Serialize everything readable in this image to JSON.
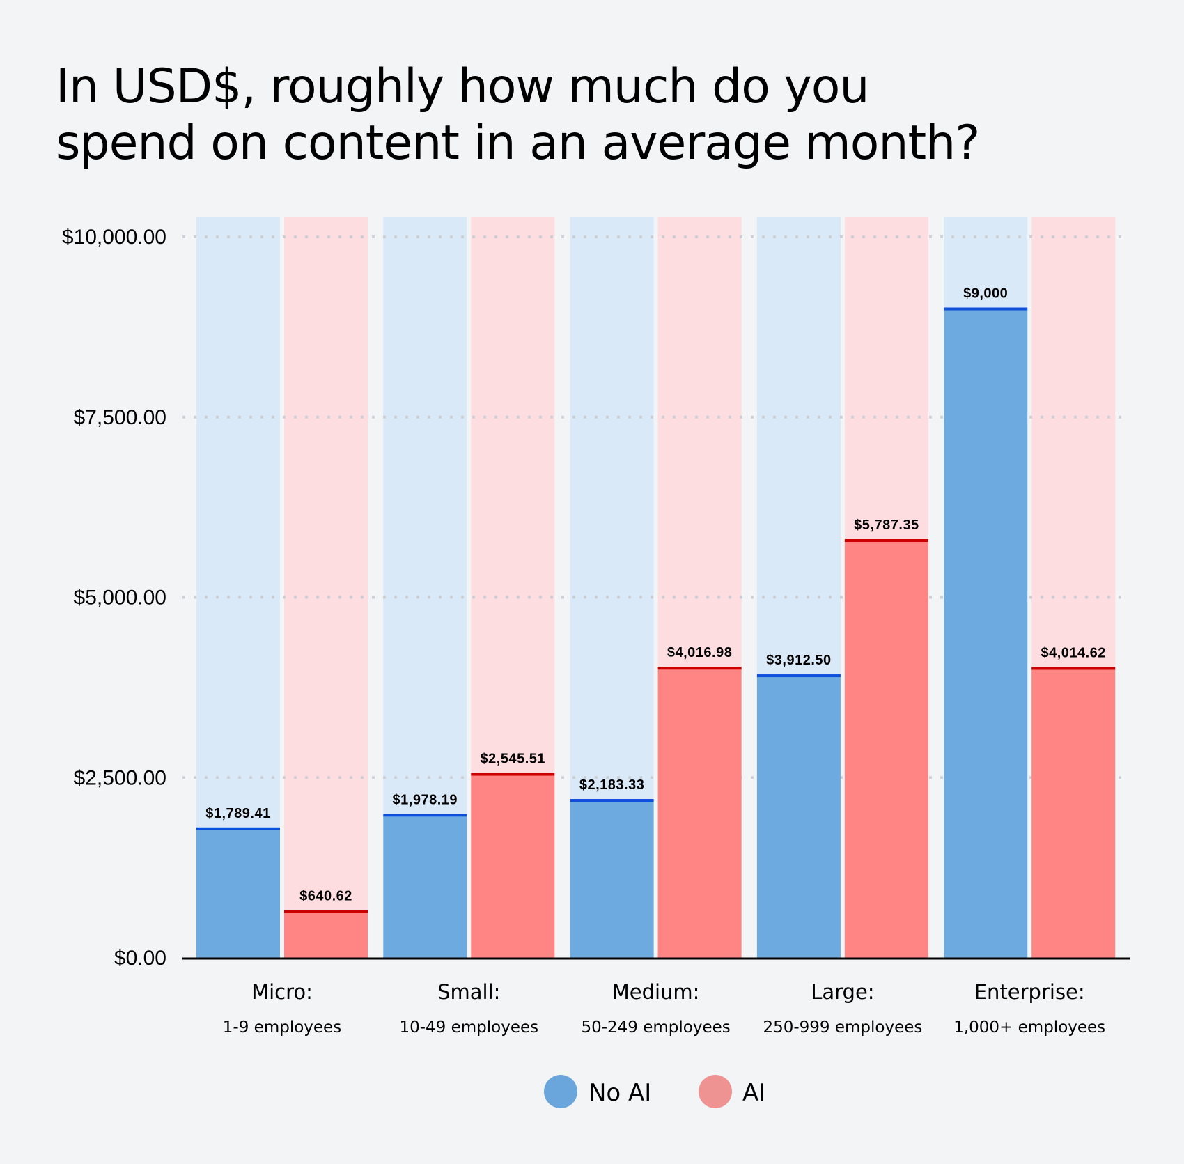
{
  "chart_data": {
    "type": "bar",
    "title": "In USD$, roughly how much do you spend on content in an average month?",
    "title_lines": [
      "In USD$, roughly how much do you",
      "spend on content in an average month?"
    ],
    "xlabel": "",
    "ylabel": "",
    "ylim": [
      0,
      10000
    ],
    "yticks": [
      0,
      2500,
      5000,
      7500,
      10000
    ],
    "ytick_labels": [
      "$0.00",
      "$2,500.00",
      "$5,000.00",
      "$7,500.00",
      "$10,000.00"
    ],
    "grid": "horizontal-dotted",
    "categories": [
      {
        "name": "Micro:",
        "sub": "1-9 employees"
      },
      {
        "name": "Small:",
        "sub": "10-49 employees"
      },
      {
        "name": "Medium:",
        "sub": "50-249 employees"
      },
      {
        "name": "Large:",
        "sub": "250-999 employees"
      },
      {
        "name": "Enterprise:",
        "sub": "1,000+ employees"
      }
    ],
    "series": [
      {
        "name": "No AI",
        "color": "#6caadf",
        "bg_color": "#d9e9f8",
        "line_color": "#0d4edb",
        "values": [
          1789.41,
          1978.19,
          2183.33,
          3912.5,
          9000
        ],
        "labels": [
          "$1,789.41",
          "$1,978.19",
          "$2,183.33",
          "$3,912.50",
          "$9,000"
        ]
      },
      {
        "name": "AI",
        "color": "#ff8484",
        "bg_color": "#fddde0",
        "line_color": "#cc0000",
        "values": [
          640.62,
          2545.51,
          4016.98,
          5787.35,
          4014.62
        ],
        "labels": [
          "$640.62",
          "$2,545.51",
          "$4,016.98",
          "$5,787.35",
          "$4,014.62"
        ]
      }
    ],
    "legend": {
      "placement": "bottom-center",
      "items": [
        {
          "label": "No AI",
          "color": "#6aa5dc"
        },
        {
          "label": "AI",
          "color": "#ee9292"
        }
      ]
    }
  }
}
